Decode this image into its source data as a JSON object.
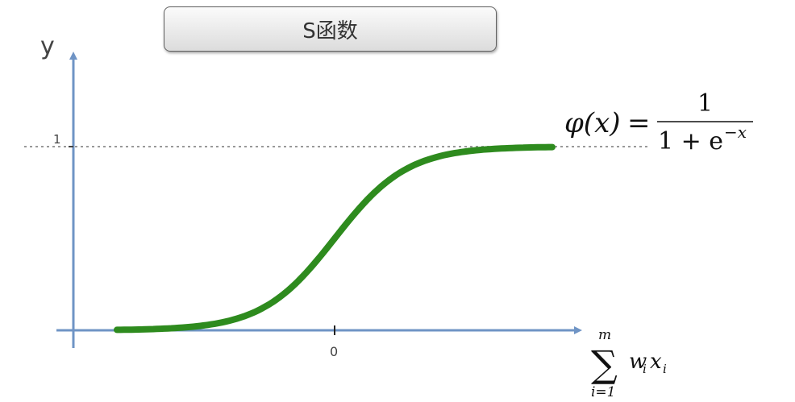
{
  "title": "S函数",
  "y_axis_label": "y",
  "y_tick_label": "1",
  "x_tick_label": "0",
  "formula": {
    "lhs": "φ(x)",
    "equals": "=",
    "numerator": "1",
    "denominator_base": "1 + e",
    "denominator_exponent": "−x"
  },
  "x_axis_label": {
    "sum_symbol": "∑",
    "upper_limit": "m",
    "lower_limit": "i=1",
    "w": "w",
    "w_sub": "i",
    "x": "x",
    "x_sub": "i"
  },
  "colors": {
    "axis": "#6f94c5",
    "curve": "#2e8b1e",
    "asymptote": "#999999"
  },
  "chart_data": {
    "type": "line",
    "function": "sigmoid",
    "series": [
      {
        "x": [
          -6,
          -5,
          -4,
          -3,
          -2,
          -1,
          0,
          1,
          2,
          3,
          4,
          5,
          6
        ],
        "y": [
          0.0025,
          0.0067,
          0.018,
          0.047,
          0.12,
          0.27,
          0.5,
          0.73,
          0.88,
          0.953,
          0.982,
          0.9933,
          0.9975
        ]
      }
    ],
    "xlim": [
      -6.5,
      6.5
    ],
    "ylim": [
      0,
      1
    ],
    "xticks": [
      0
    ],
    "yticks": [
      1
    ]
  }
}
